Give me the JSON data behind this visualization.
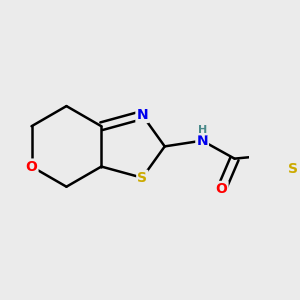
{
  "background_color": "#ebebeb",
  "bond_color": "#000000",
  "atom_colors": {
    "S": "#ccaa00",
    "N": "#0000ee",
    "O": "#ff0000",
    "H": "#4a8a8a",
    "C": "#000000"
  },
  "bond_width": 1.8,
  "figsize": [
    3.0,
    3.0
  ],
  "dpi": 100
}
